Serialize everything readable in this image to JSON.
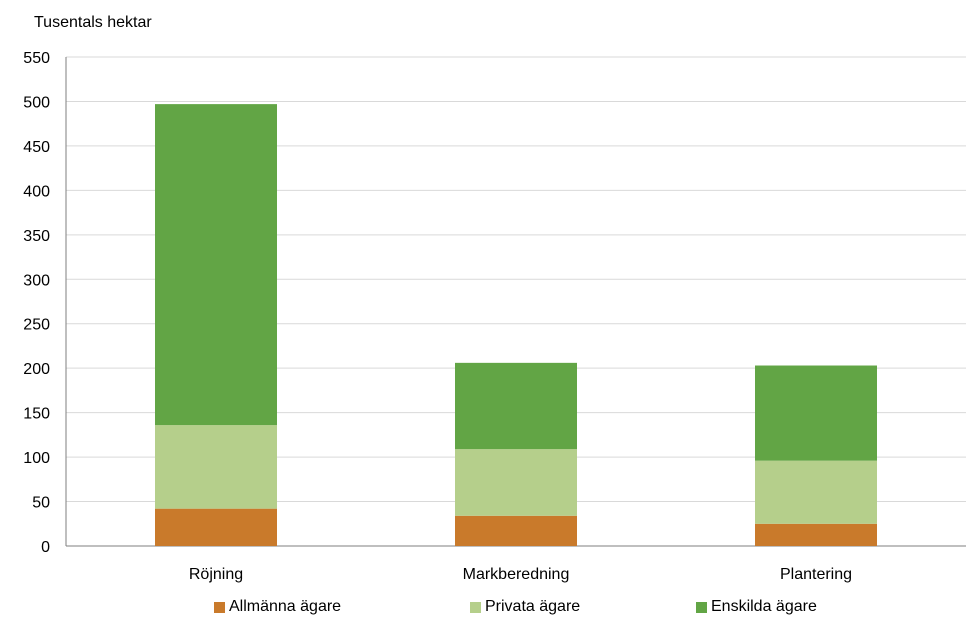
{
  "chart_data": {
    "type": "bar",
    "stacked": true,
    "title": "",
    "ylabel": "Tusentals hektar",
    "xlabel": "",
    "categories": [
      "Röjning",
      "Markberedning",
      "Plantering"
    ],
    "series": [
      {
        "name": "Allmänna ägare",
        "color": "#C97A2B",
        "values": [
          42,
          34,
          25
        ]
      },
      {
        "name": "Privata ägare",
        "color": "#B5CF8B",
        "values": [
          94,
          75,
          71
        ]
      },
      {
        "name": "Enskilda ägare",
        "color": "#62A545",
        "values": [
          361,
          97,
          107
        ]
      }
    ],
    "ylim": [
      0,
      550
    ],
    "yticks": [
      "0",
      "50",
      "100",
      "150",
      "200",
      "250",
      "300",
      "350",
      "400",
      "450",
      "500",
      "550"
    ],
    "grid": true,
    "legend_position": "bottom"
  }
}
